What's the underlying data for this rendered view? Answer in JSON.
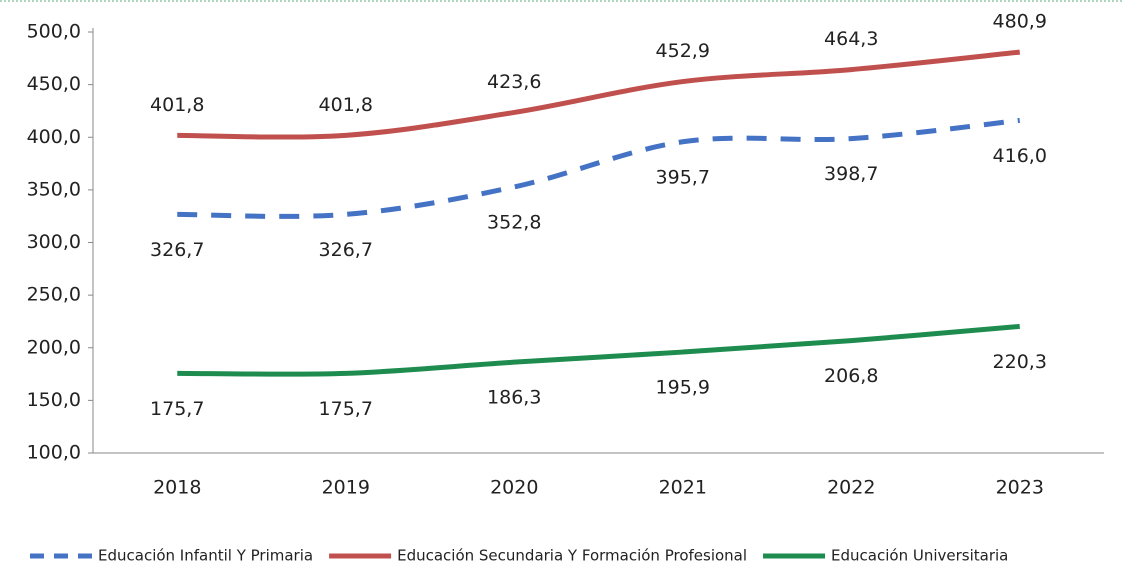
{
  "chart_data": {
    "type": "line",
    "categories": [
      "2018",
      "2019",
      "2020",
      "2021",
      "2022",
      "2023"
    ],
    "series": [
      {
        "name": "Educación Infantil Y Primaria",
        "color": "#4472c4",
        "dash": true,
        "values": [
          326.7,
          326.7,
          352.8,
          395.7,
          398.7,
          416.0
        ],
        "value_labels": [
          "326,7",
          "326,7",
          "352,8",
          "395,7",
          "398,7",
          "416,0"
        ]
      },
      {
        "name": "Educación Secundaria Y Formación Profesional",
        "color": "#c0504d",
        "dash": false,
        "values": [
          401.8,
          401.8,
          423.6,
          452.9,
          464.3,
          480.9
        ],
        "value_labels": [
          "401,8",
          "401,8",
          "423,6",
          "452,9",
          "464,3",
          "480,9"
        ]
      },
      {
        "name": "Educación Universitaria",
        "color": "#1e8c4e",
        "dash": false,
        "values": [
          175.7,
          175.7,
          186.3,
          195.9,
          206.8,
          220.3
        ],
        "value_labels": [
          "175,7",
          "175,7",
          "186,3",
          "195,9",
          "206,8",
          "220,3"
        ]
      }
    ],
    "ylim": [
      100,
      500
    ],
    "yticks": [
      {
        "value": 100,
        "label": "100,0"
      },
      {
        "value": 150,
        "label": "150,0"
      },
      {
        "value": 200,
        "label": "200,0"
      },
      {
        "value": 250,
        "label": "250,0"
      },
      {
        "value": 300,
        "label": "300,0"
      },
      {
        "value": 350,
        "label": "350,0"
      },
      {
        "value": 400,
        "label": "400,0"
      },
      {
        "value": 450,
        "label": "450,0"
      },
      {
        "value": 500,
        "label": "500,0"
      }
    ],
    "grid": false,
    "legend": "bottom"
  }
}
